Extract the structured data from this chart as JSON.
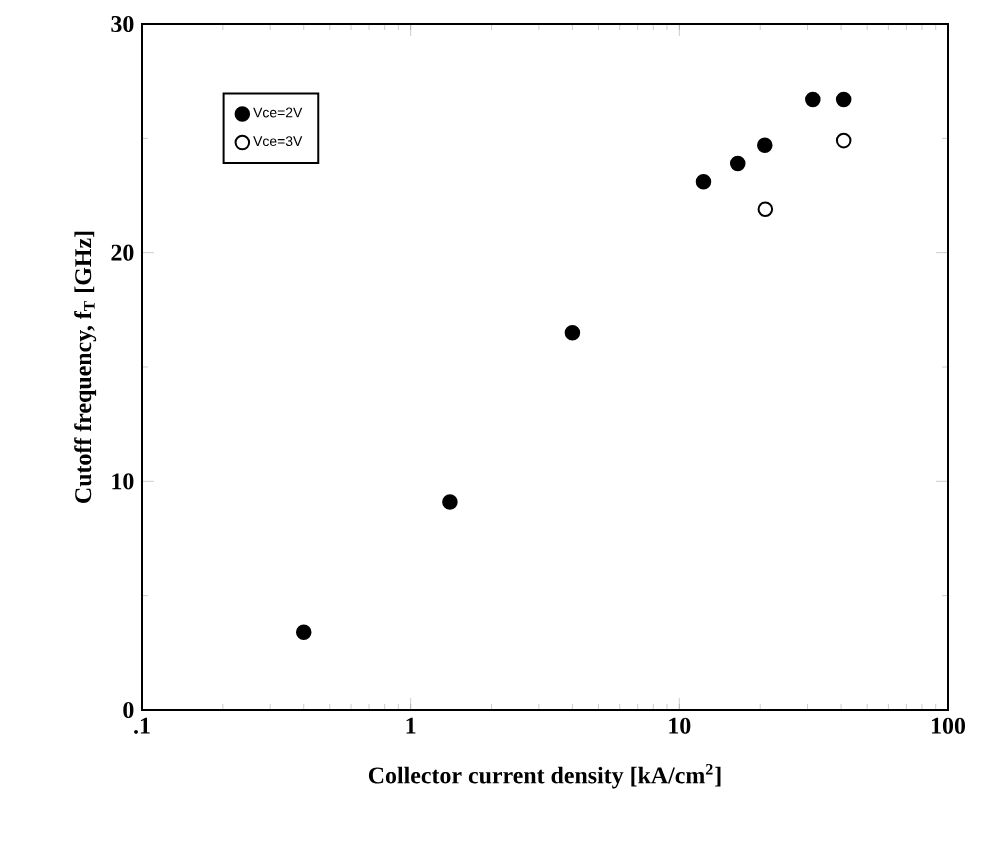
{
  "chart_data": {
    "type": "scatter",
    "xlabel": "Collector current density  [kA/cm$^{2}$]",
    "ylabel": "Cutoff frequency,  f$_{T}$  [GHz]",
    "log": "x",
    "xlim": [
      0.1,
      100
    ],
    "xticks": [
      {
        "value": 0.1,
        "label": ".1"
      },
      1,
      10,
      100
    ],
    "ylim": [
      0,
      30
    ],
    "yticks": [
      0,
      10,
      20,
      30
    ],
    "grid": false,
    "legend": "top left",
    "marker": "circle",
    "series": [
      {
        "name": "Vce=2V",
        "color": "#000000",
        "x": [
          0.4,
          1.4,
          4,
          12.3,
          16.5,
          20.8,
          31.4,
          40.9
        ],
        "values": [
          3.4,
          9.1,
          16.5,
          23.1,
          23.9,
          24.7,
          26.7,
          26.7
        ]
      },
      {
        "name": "Vce=3V",
        "color": "#ffffff",
        "x": [
          20.9,
          40.9
        ],
        "values": [
          21.9,
          24.9
        ]
      }
    ]
  }
}
